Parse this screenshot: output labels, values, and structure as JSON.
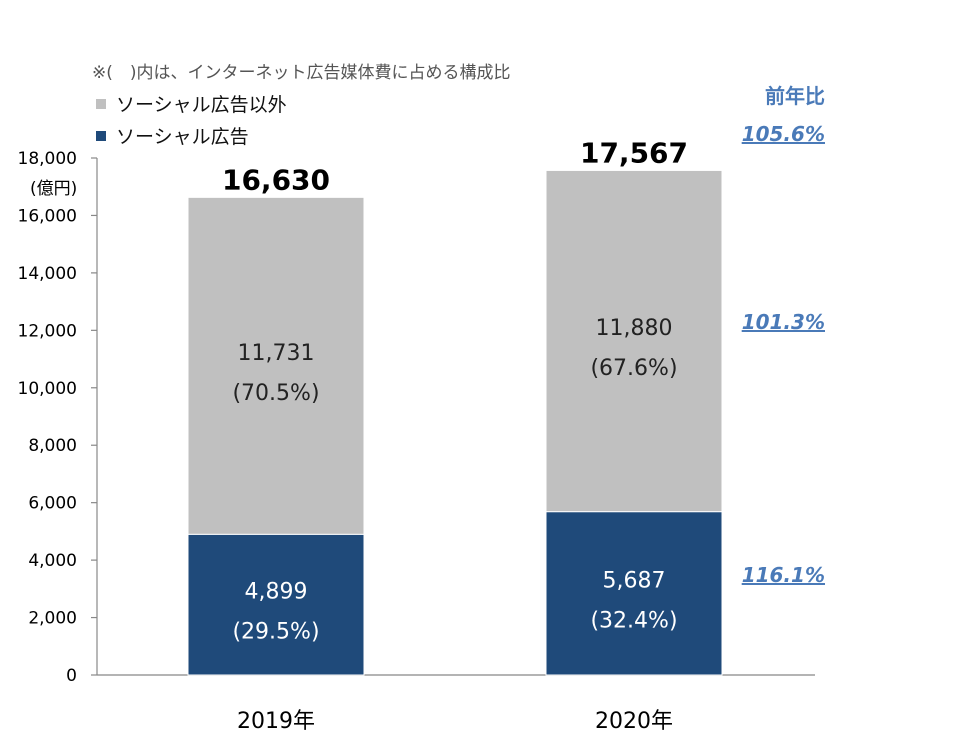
{
  "note": "※(　)内は、インターネット広告媒体費に占める構成比",
  "unit_label": "(億円)",
  "yoy": {
    "header": "前年比",
    "total": "105.6%",
    "other": "101.3%",
    "social": "116.1%"
  },
  "colors": {
    "social": "#1f4a7a",
    "other": "#c0c0c0",
    "yoy": "#4a7ab8",
    "axis": "#888888"
  },
  "chart_data": {
    "type": "bar",
    "stacked": true,
    "categories": [
      "2019年",
      "2020年"
    ],
    "series": [
      {
        "name": "ソーシャル広告",
        "values": [
          4899,
          5687
        ],
        "labels": [
          "4,899",
          "5,687"
        ],
        "share_labels": [
          "(29.5%)",
          "(32.4%)"
        ]
      },
      {
        "name": "ソーシャル広告以外",
        "values": [
          11731,
          11880
        ],
        "labels": [
          "11,731",
          "11,880"
        ],
        "share_labels": [
          "(70.5%)",
          "(67.6%)"
        ]
      }
    ],
    "totals": [
      16630,
      17567
    ],
    "total_labels": [
      "16,630",
      "17,567"
    ],
    "ylim": [
      0,
      18000
    ],
    "yticks": [
      0,
      2000,
      4000,
      6000,
      8000,
      10000,
      12000,
      14000,
      16000,
      18000
    ],
    "ytick_labels": [
      "0",
      "2,000",
      "4,000",
      "6,000",
      "8,000",
      "10,000",
      "12,000",
      "14,000",
      "16,000",
      "18,000"
    ],
    "grid": false,
    "legend_position": "top-left"
  }
}
